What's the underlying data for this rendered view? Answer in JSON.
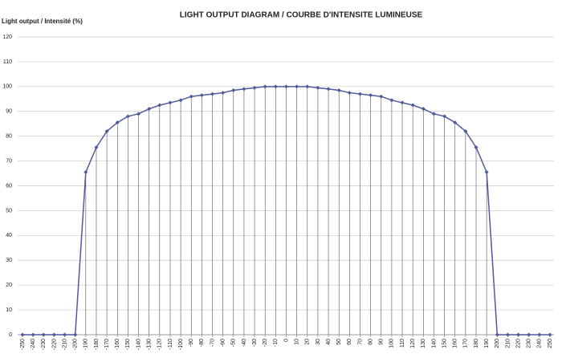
{
  "chart_data": {
    "type": "line",
    "title": "LIGHT OUTPUT DIAGRAM / COURBE D'INTENSITE LUMINEUSE",
    "y_label": "Light output / Intensité (%)",
    "x": [
      -250,
      -240,
      -230,
      -220,
      -210,
      -200,
      -190,
      -180,
      -170,
      -160,
      -150,
      -140,
      -130,
      -120,
      -110,
      -100,
      -90,
      -80,
      -70,
      -60,
      -50,
      -40,
      -30,
      -20,
      -10,
      0,
      10,
      20,
      30,
      40,
      50,
      60,
      70,
      80,
      90,
      100,
      110,
      120,
      130,
      140,
      150,
      160,
      170,
      180,
      190,
      200,
      210,
      220,
      230,
      240,
      250
    ],
    "series": [
      {
        "color": "#4e5b9c",
        "values": [
          0,
          0,
          0,
          0,
          0,
          0,
          65.5,
          75.5,
          82,
          85.5,
          88,
          89,
          91,
          92.5,
          93.5,
          94.5,
          96,
          96.5,
          97,
          97.5,
          98.5,
          99,
          99.5,
          100,
          100,
          100,
          100,
          100,
          99.5,
          99,
          98.5,
          97.5,
          97,
          96.5,
          96,
          94.5,
          93.5,
          92.5,
          91,
          89,
          88,
          85.5,
          82,
          75.5,
          65.5,
          0,
          0,
          0,
          0,
          0,
          0
        ]
      }
    ],
    "xlim": [
      -250,
      250
    ],
    "xticks": [
      -250,
      -240,
      -230,
      -220,
      -210,
      -200,
      -190,
      -180,
      -170,
      -160,
      -150,
      -140,
      -130,
      -120,
      -110,
      -100,
      -90,
      -80,
      -70,
      -60,
      -50,
      -40,
      -30,
      -20,
      -10,
      0,
      10,
      20,
      30,
      40,
      50,
      60,
      70,
      80,
      90,
      100,
      110,
      120,
      130,
      140,
      150,
      160,
      170,
      180,
      190,
      200,
      210,
      220,
      230,
      240,
      250
    ],
    "ylim": [
      0,
      120
    ],
    "yticks": [
      0,
      10,
      20,
      30,
      40,
      50,
      60,
      70,
      80,
      90,
      100,
      110,
      120
    ],
    "grid": true,
    "drop_lines": true
  }
}
